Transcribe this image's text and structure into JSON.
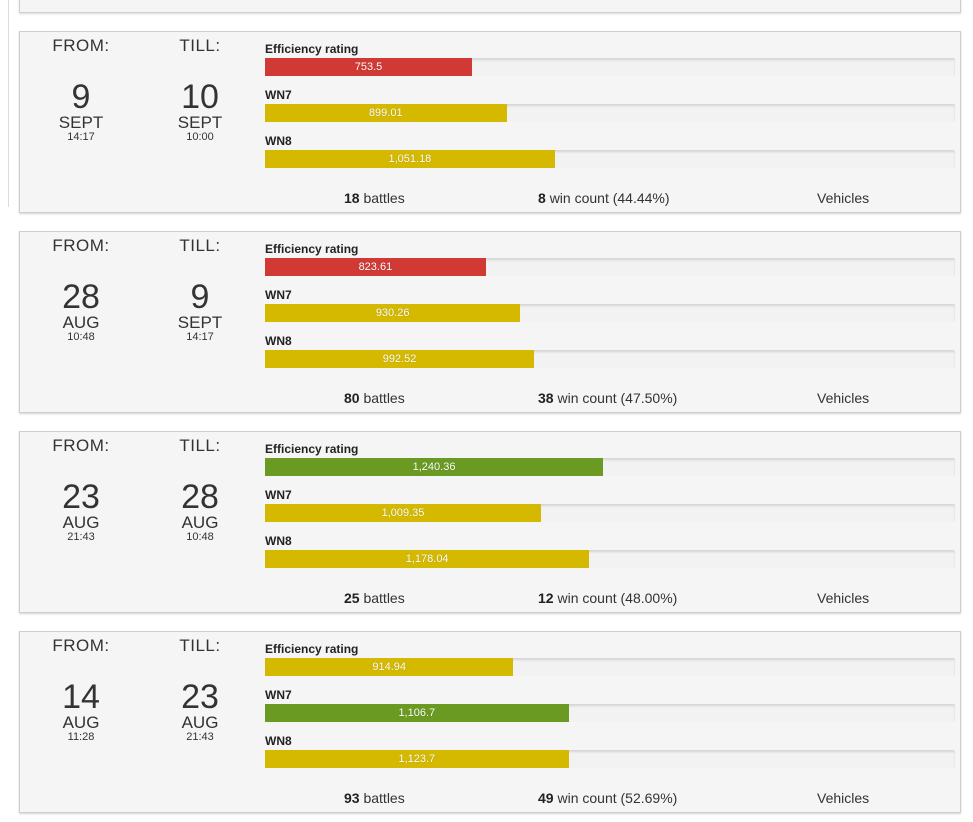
{
  "labels": {
    "from": "FROM:",
    "till": "TILL:",
    "efficiency": "Efficiency rating",
    "wn7": "WN7",
    "wn8": "WN8",
    "battles_suffix": "battles",
    "win_count_prefix": "win count",
    "vehicles": "Vehicles"
  },
  "colors": {
    "red": "#d13a34",
    "yellow": "#d4b900",
    "green": "#6b9a23",
    "track": "#f2f2f2"
  },
  "cards": [
    {
      "from": {
        "day": "9",
        "month": "SEPT",
        "time": "14:17"
      },
      "till": {
        "day": "10",
        "month": "SEPT",
        "time": "10:00"
      },
      "efficiency": {
        "value": "753.5",
        "percent": 30,
        "color": "red"
      },
      "wn7": {
        "value": "899.01",
        "percent": 35,
        "color": "yellow"
      },
      "wn8": {
        "value": "1,051.18",
        "percent": 42,
        "color": "yellow"
      },
      "battles": "18",
      "wins": "8",
      "win_pct": "(44.44%)"
    },
    {
      "from": {
        "day": "28",
        "month": "AUG",
        "time": "10:48"
      },
      "till": {
        "day": "9",
        "month": "SEPT",
        "time": "14:17"
      },
      "efficiency": {
        "value": "823.61",
        "percent": 32,
        "color": "red"
      },
      "wn7": {
        "value": "930.26",
        "percent": 37,
        "color": "yellow"
      },
      "wn8": {
        "value": "992.52",
        "percent": 39,
        "color": "yellow"
      },
      "battles": "80",
      "wins": "38",
      "win_pct": "(47.50%)"
    },
    {
      "from": {
        "day": "23",
        "month": "AUG",
        "time": "21:43"
      },
      "till": {
        "day": "28",
        "month": "AUG",
        "time": "10:48"
      },
      "efficiency": {
        "value": "1,240.36",
        "percent": 49,
        "color": "green"
      },
      "wn7": {
        "value": "1,009.35",
        "percent": 40,
        "color": "yellow"
      },
      "wn8": {
        "value": "1,178.04",
        "percent": 47,
        "color": "yellow"
      },
      "battles": "25",
      "wins": "12",
      "win_pct": "(48.00%)"
    },
    {
      "from": {
        "day": "14",
        "month": "AUG",
        "time": "11:28"
      },
      "till": {
        "day": "23",
        "month": "AUG",
        "time": "21:43"
      },
      "efficiency": {
        "value": "914.94",
        "percent": 36,
        "color": "yellow"
      },
      "wn7": {
        "value": "1,106.7",
        "percent": 44,
        "color": "green"
      },
      "wn8": {
        "value": "1,123.7",
        "percent": 44,
        "color": "yellow"
      },
      "battles": "93",
      "wins": "49",
      "win_pct": "(52.69%)"
    }
  ]
}
